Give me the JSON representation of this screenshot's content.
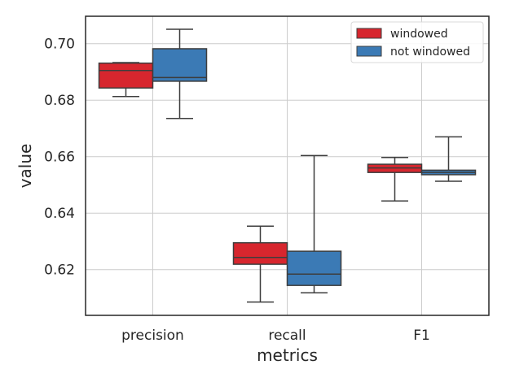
{
  "chart_data": {
    "type": "box",
    "xlabel": "metrics",
    "ylabel": "value",
    "categories": [
      "precision",
      "recall",
      "F1"
    ],
    "ylim": [
      0.6038,
      0.7097
    ],
    "yticks": [
      0.62,
      0.64,
      0.66,
      0.68,
      0.7
    ],
    "ytick_labels": [
      "0.62",
      "0.64",
      "0.66",
      "0.68",
      "0.70"
    ],
    "grid": true,
    "legend_position": "top-right",
    "series": [
      {
        "name": "windowed",
        "color": "#d7262e",
        "boxes": [
          {
            "whisker_low": 0.6813,
            "q1": 0.6843,
            "median": 0.6905,
            "q3": 0.6931,
            "whisker_high": 0.6933
          },
          {
            "whisker_low": 0.6085,
            "q1": 0.6219,
            "median": 0.6243,
            "q3": 0.6295,
            "whisker_high": 0.6354
          },
          {
            "whisker_low": 0.6443,
            "q1": 0.6544,
            "median": 0.656,
            "q3": 0.6573,
            "whisker_high": 0.6597
          }
        ]
      },
      {
        "name": "not windowed",
        "color": "#3b7ab5",
        "boxes": [
          {
            "whisker_low": 0.6735,
            "q1": 0.6867,
            "median": 0.688,
            "q3": 0.6982,
            "whisker_high": 0.7051
          },
          {
            "whisker_low": 0.6118,
            "q1": 0.6144,
            "median": 0.6184,
            "q3": 0.6265,
            "whisker_high": 0.6604
          },
          {
            "whisker_low": 0.6513,
            "q1": 0.6536,
            "median": 0.6544,
            "q3": 0.6552,
            "whisker_high": 0.667
          }
        ]
      }
    ]
  }
}
